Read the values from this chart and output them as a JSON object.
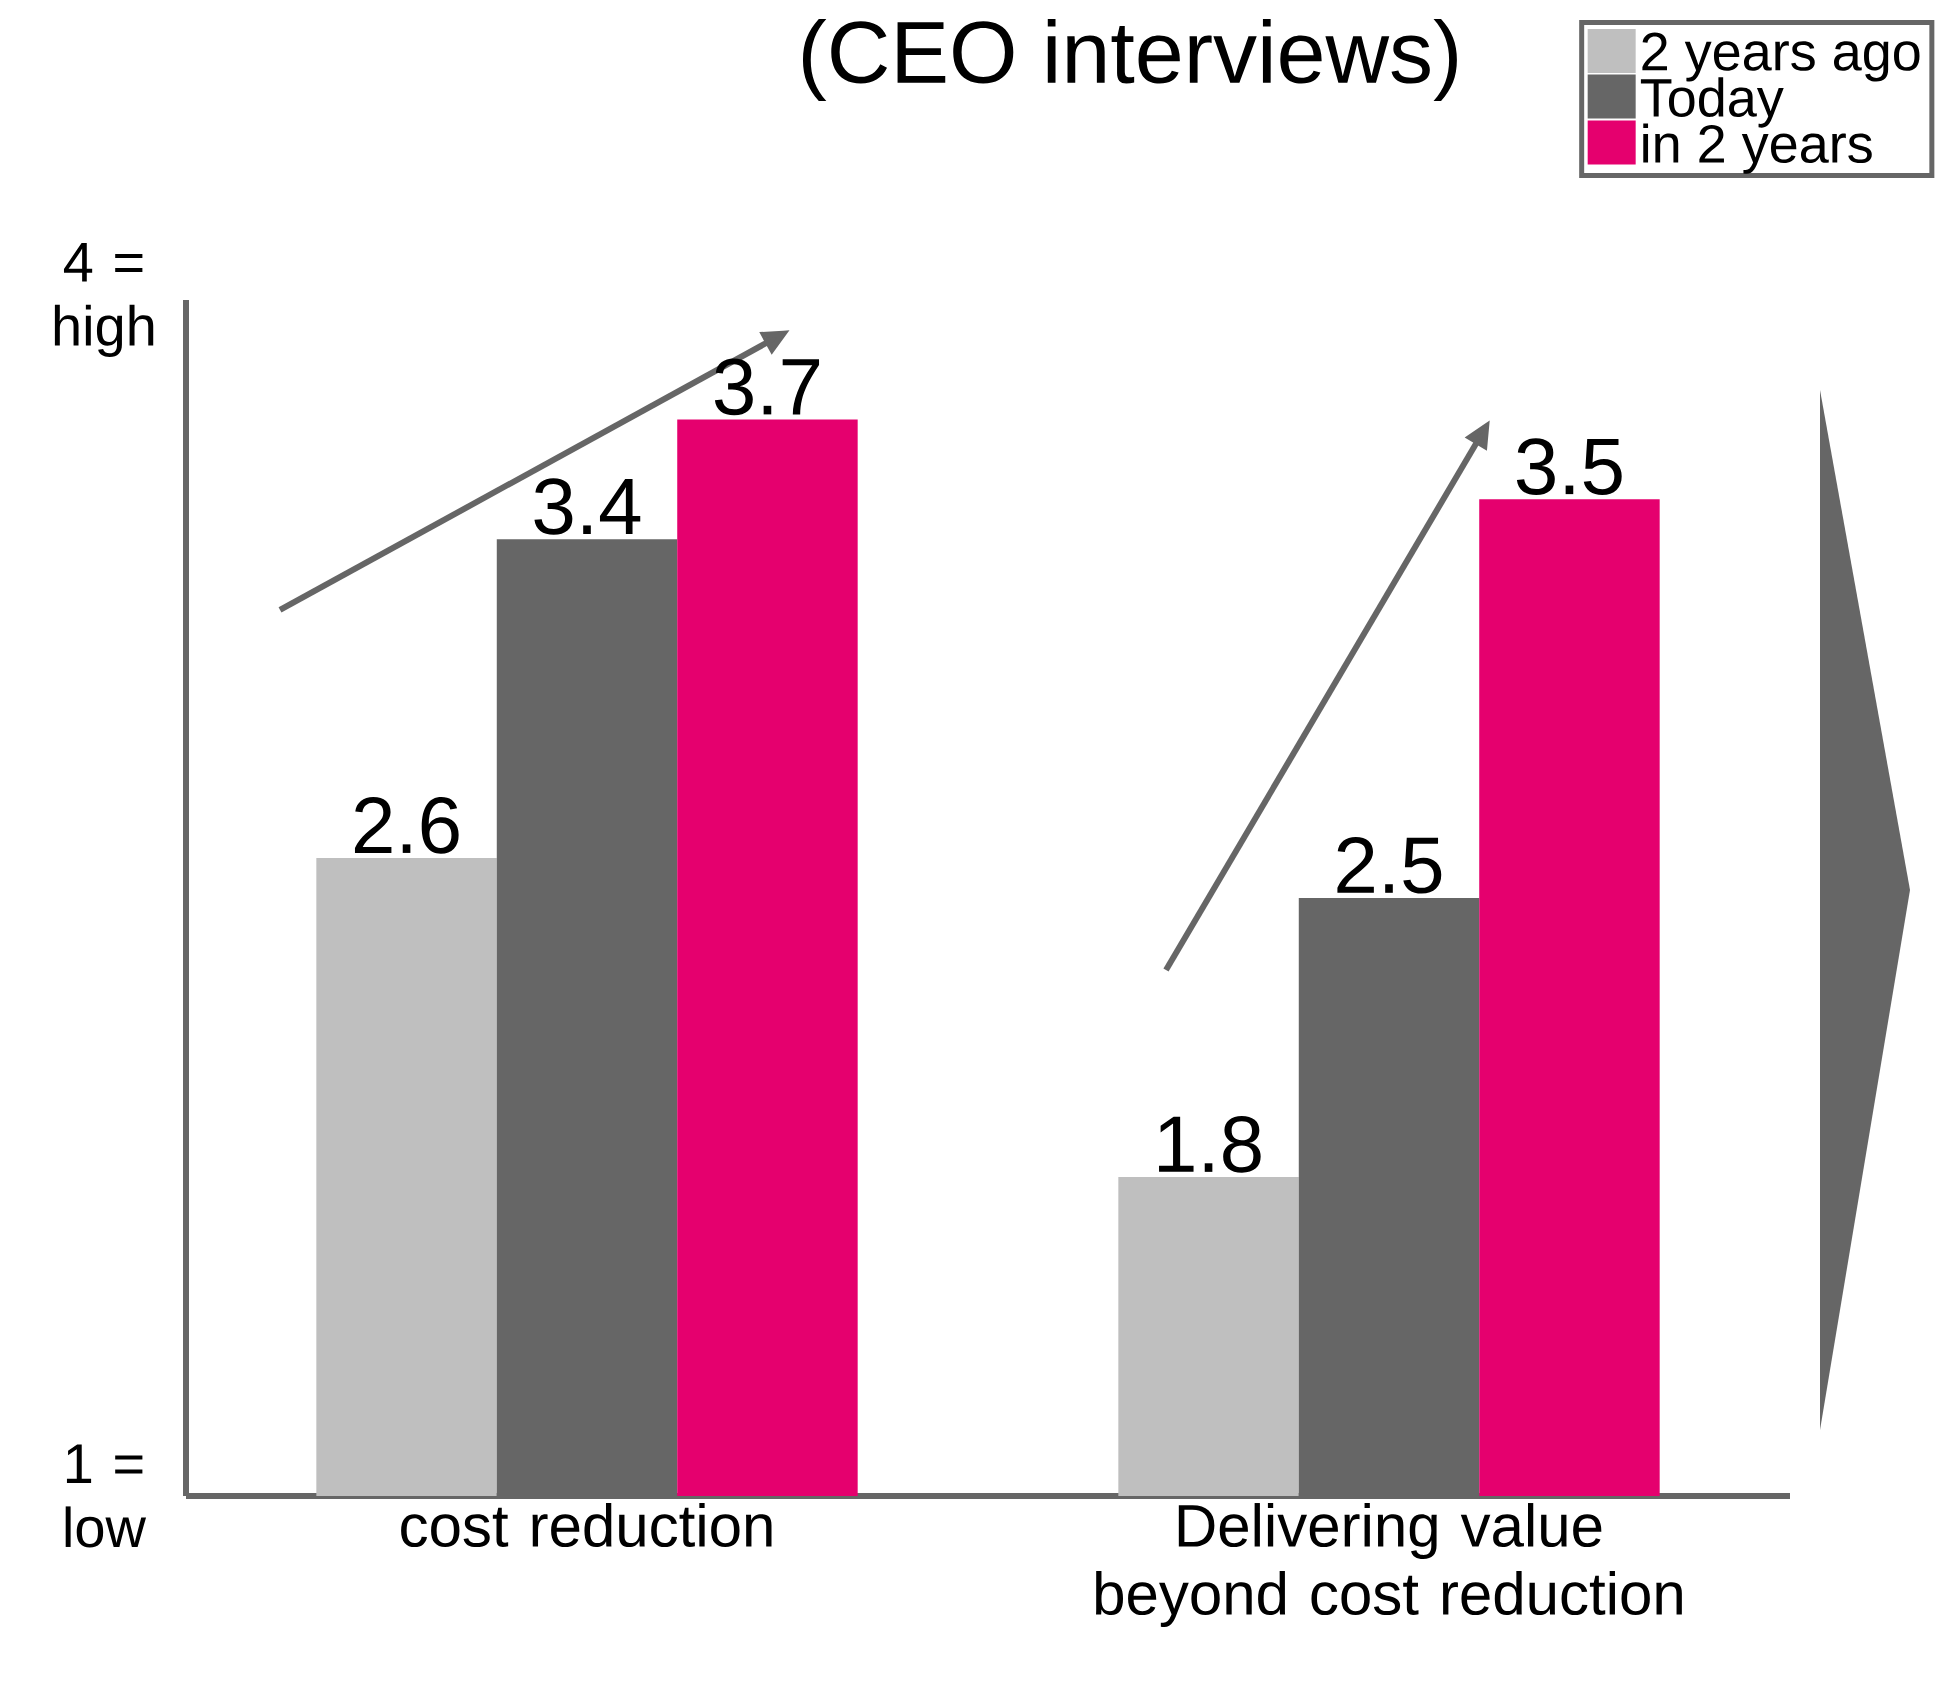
{
  "chart_data": {
    "type": "bar",
    "title": "(CEO interviews)",
    "categories": [
      "cost reduction",
      "Delivering value beyond cost reduction"
    ],
    "series": [
      {
        "name": "2 years ago",
        "color": "#bfbfbf",
        "values": [
          2.6,
          1.8
        ]
      },
      {
        "name": "Today",
        "color": "#666666",
        "values": [
          3.4,
          2.5
        ]
      },
      {
        "name": "in 2 years",
        "color": "#e5006e",
        "values": [
          3.7,
          3.5
        ]
      }
    ],
    "ylim": [
      1,
      4
    ],
    "yticks": [
      {
        "value": 4,
        "label": "4 = high"
      },
      {
        "value": 1,
        "label": "1 = low"
      }
    ],
    "data_labels": true,
    "legend": "top right"
  }
}
